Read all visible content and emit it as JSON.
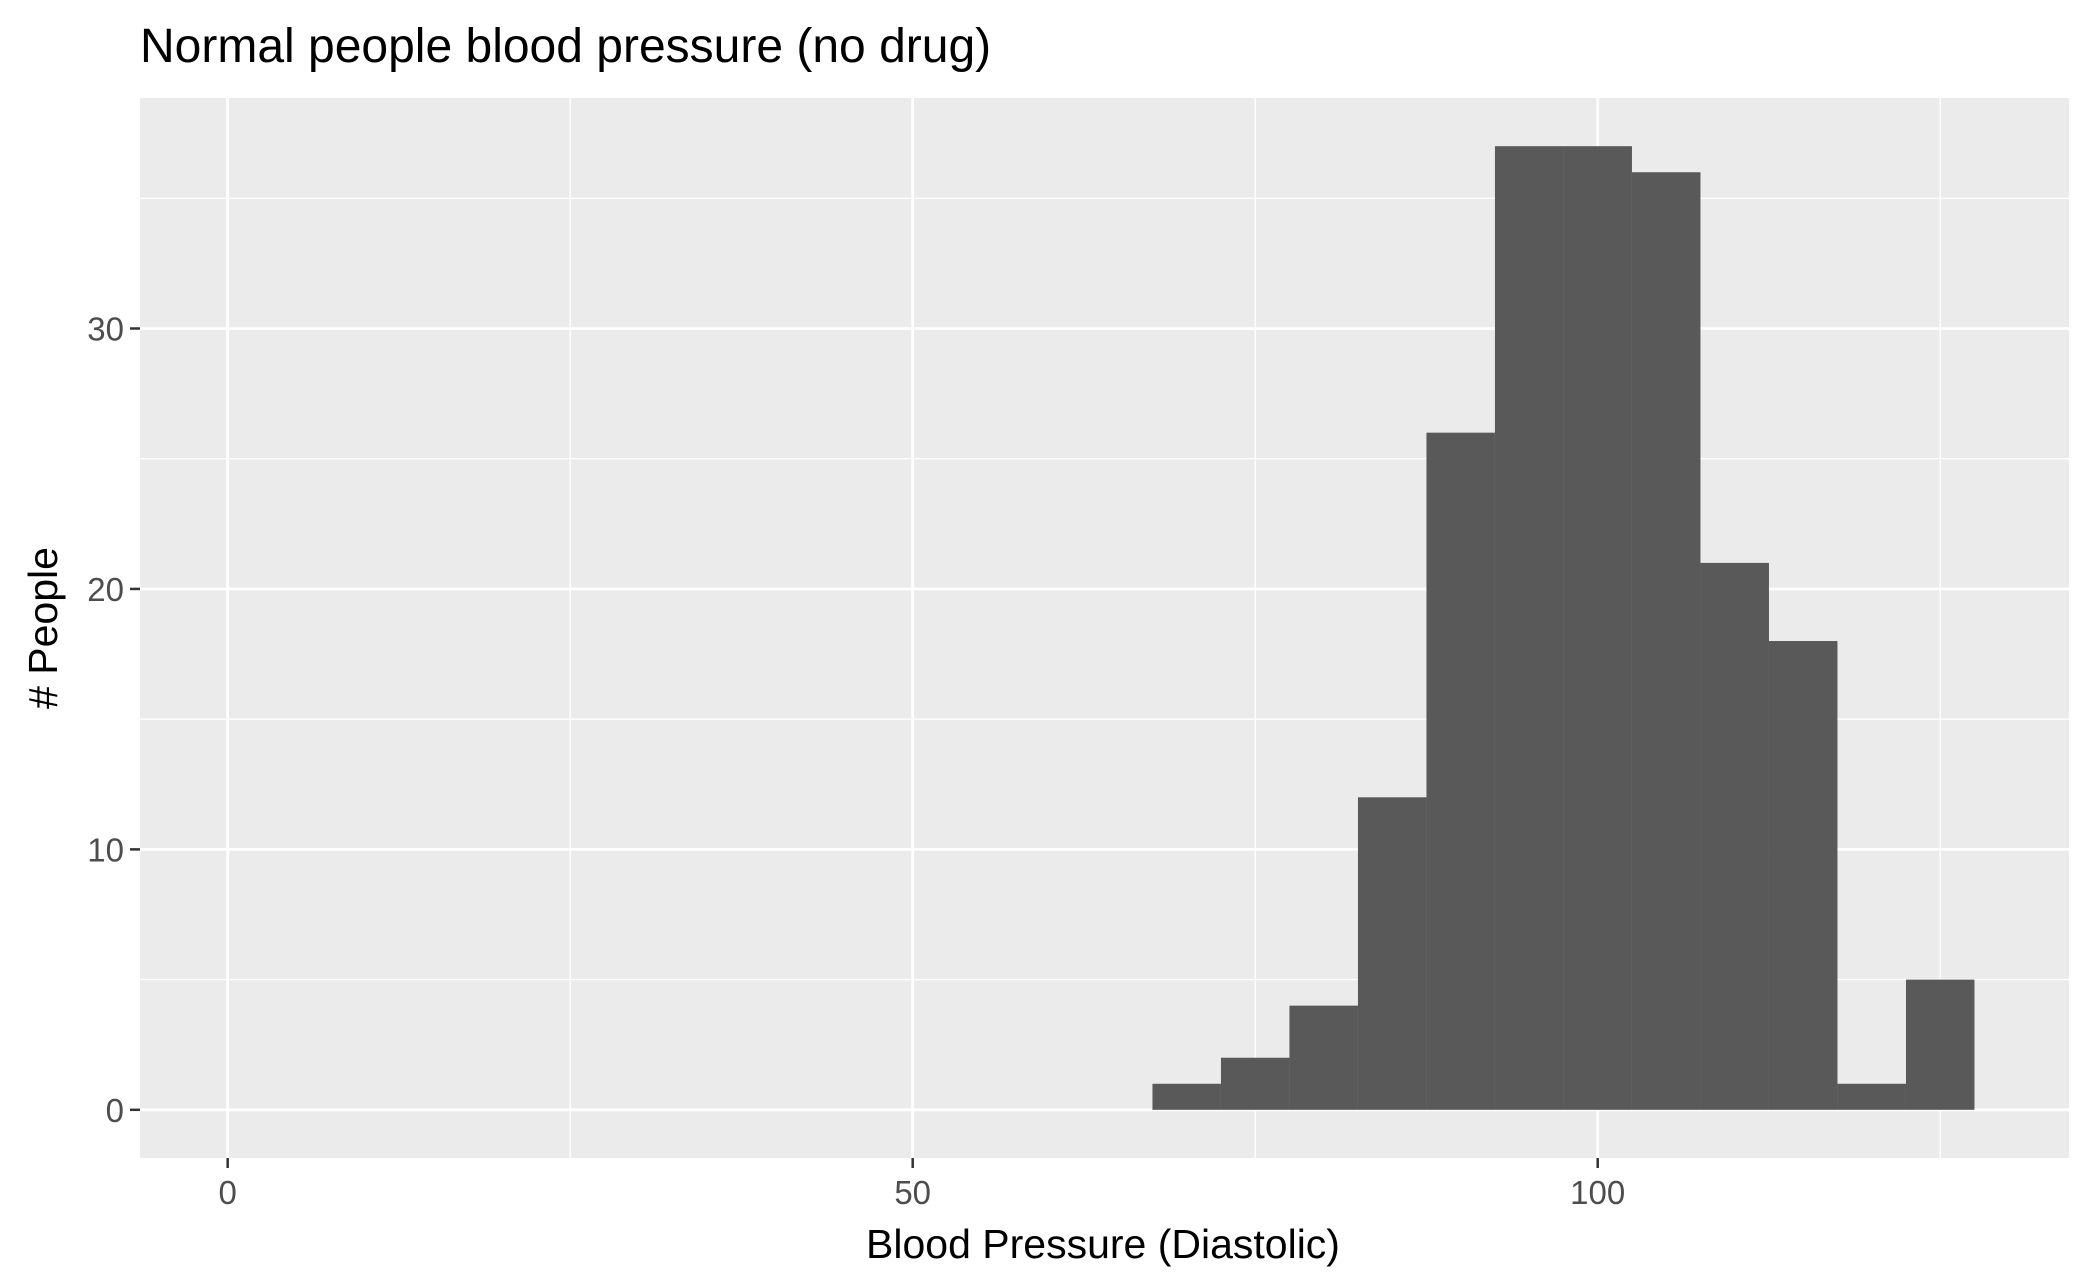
{
  "chart_data": {
    "type": "bar",
    "title": "Normal people blood pressure (no drug)",
    "xlabel": "Blood Pressure (Diastolic)",
    "ylabel": "# People",
    "bin_width": 5,
    "bins": [
      {
        "x": 70,
        "count": 1
      },
      {
        "x": 75,
        "count": 2
      },
      {
        "x": 80,
        "count": 4
      },
      {
        "x": 85,
        "count": 12
      },
      {
        "x": 90,
        "count": 26
      },
      {
        "x": 95,
        "count": 37
      },
      {
        "x": 100,
        "count": 37
      },
      {
        "x": 105,
        "count": 36
      },
      {
        "x": 110,
        "count": 21
      },
      {
        "x": 115,
        "count": 18
      },
      {
        "x": 120,
        "count": 1
      },
      {
        "x": 125,
        "count": 5
      }
    ],
    "xlim": [
      -6.4,
      134.4
    ],
    "ylim": [
      -1.85,
      38.85
    ],
    "x_ticks": [
      0,
      50,
      100
    ],
    "x_minor_ticks": [
      25,
      75,
      125
    ],
    "y_ticks": [
      0,
      10,
      20,
      30
    ],
    "y_minor_ticks": [
      5,
      15,
      25,
      35
    ],
    "x_tick_labels": [
      "0",
      "50",
      "100"
    ],
    "y_tick_labels": [
      "0",
      "10",
      "20",
      "30"
    ],
    "grid": true,
    "colors": {
      "panel": "#ebebeb",
      "grid": "#ffffff",
      "bar": "#595959",
      "tick": "#333333"
    }
  }
}
